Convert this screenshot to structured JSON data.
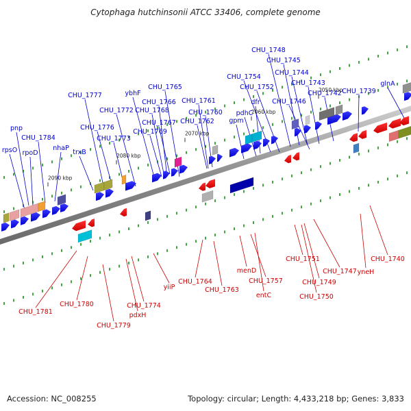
{
  "title": "Cytophaga hutchinsonii ATCC 33406, complete genome",
  "footer": {
    "accession": "Accession: NC_008255",
    "summary": "Topology: circular; Length: 4,433,218 bp; Genes: 3,833"
  },
  "colors": {
    "forward": "#0000ee",
    "reverse": "#ee0000",
    "forward_label": "#0000cc",
    "reverse_label": "#cc0000",
    "backbone": "#8c8c8c",
    "tick": "#008800"
  },
  "kbp_ticks": [
    "2050 kbp",
    "2060 kbp",
    "2070 kbp",
    "2080 kbp",
    "2090 kbp"
  ],
  "forward_labels": [
    "CHU_1748",
    "CHU_1745",
    "CHU_1744",
    "CHU_1743",
    "CHU_1742",
    "CHU_1739",
    "glnA",
    "CHU_1754",
    "CHU_1752",
    "dfr",
    "pdhC",
    "gpm",
    "CHU_1746",
    "CHU_1765",
    "CHU_1761",
    "CHU_1760",
    "CHU_1762",
    "ybhF",
    "CHU_1766",
    "CHU_1768",
    "CHU_1767",
    "CHU_1769",
    "CHU_1772",
    "CHU_1777",
    "CHU_1776",
    "CHU_1773",
    "trxB",
    "nhaP",
    "pnp",
    "CHU_1784",
    "rpsO",
    "rpoD"
  ],
  "reverse_labels": [
    "CHU_1781",
    "CHU_1780",
    "CHU_1779",
    "pdxH",
    "CHU_1774",
    "yiiP",
    "CHU_1764",
    "CHU_1763",
    "menD",
    "CHU_1757",
    "entC",
    "CHU_1751",
    "CHU_1749",
    "CHU_1750",
    "CHU_1747",
    "yneH",
    "CHU_1740"
  ]
}
